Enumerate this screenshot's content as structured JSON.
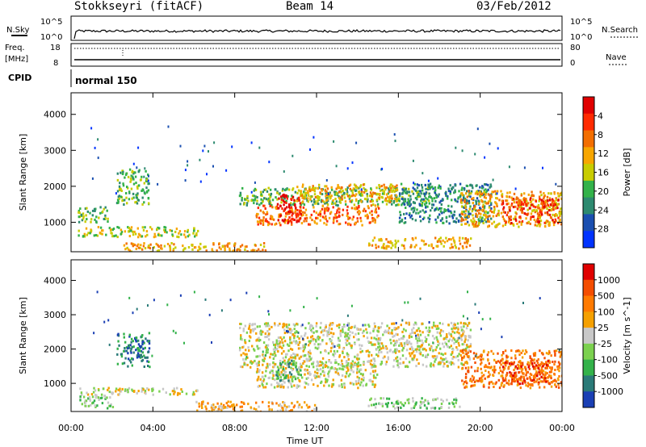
{
  "header": {
    "station": "Stokkseyri (fitACF)",
    "beam": "Beam 14",
    "date": "03/Feb/2012"
  },
  "panels": {
    "nsky": {
      "left_label": "N.Sky",
      "right_label": "N.Search",
      "ticks_left": [
        "10^5",
        "10^0"
      ],
      "ticks_right": [
        "10^5",
        "10^0"
      ]
    },
    "freq": {
      "left_label_1": "Freq.",
      "left_label_2": "[MHz]",
      "right_label": "Nave",
      "ticks_left": [
        "18",
        "8"
      ],
      "ticks_right": [
        "80",
        "0"
      ]
    },
    "cpid": {
      "label": "CPID",
      "value": "normal 150"
    }
  },
  "chart_data": [
    {
      "type": "heatmap",
      "title": "",
      "xlabel": "Time UT",
      "ylabel": "Slant Range [km]",
      "xlim": [
        0,
        24
      ],
      "ylim": [
        180,
        4600
      ],
      "x_ticks": [
        "00:00",
        "04:00",
        "08:00",
        "12:00",
        "16:00",
        "20:00",
        "00:00"
      ],
      "y_ticks": [
        "1000",
        "2000",
        "3000",
        "4000"
      ],
      "colorbar": {
        "label": "Power [dB]",
        "ticks": [
          "4",
          "8",
          "12",
          "16",
          "20",
          "24",
          "28"
        ],
        "colors": [
          "#0033ff",
          "#1a4fb0",
          "#2d8a70",
          "#33b24a",
          "#c8cc00",
          "#f7a600",
          "#f36e00",
          "#ff2a00",
          "#e00000"
        ]
      },
      "regions": [
        {
          "t0": 0.3,
          "t1": 6.2,
          "r0": 620,
          "r1": 900,
          "level": 4
        },
        {
          "t0": 0.3,
          "t1": 1.8,
          "r0": 1000,
          "r1": 1450,
          "level": 3
        },
        {
          "t0": 2.2,
          "t1": 3.8,
          "r0": 1500,
          "r1": 2500,
          "level": 3
        },
        {
          "t0": 2.5,
          "t1": 9.5,
          "r0": 200,
          "r1": 450,
          "level": 5
        },
        {
          "t0": 8.2,
          "t1": 17.5,
          "r0": 1500,
          "r1": 2000,
          "level": 3
        },
        {
          "t0": 9.0,
          "t1": 15.0,
          "r0": 950,
          "r1": 1500,
          "level": 6
        },
        {
          "t0": 10.0,
          "t1": 11.2,
          "r0": 1000,
          "r1": 1800,
          "level": 8
        },
        {
          "t0": 11.0,
          "t1": 16.0,
          "r0": 1600,
          "r1": 2100,
          "level": 5
        },
        {
          "t0": 14.5,
          "t1": 19.5,
          "r0": 300,
          "r1": 600,
          "level": 5
        },
        {
          "t0": 16.0,
          "t1": 20.5,
          "r0": 1000,
          "r1": 2100,
          "level": 2
        },
        {
          "t0": 19.0,
          "t1": 24.0,
          "r0": 900,
          "r1": 1900,
          "level": 5
        },
        {
          "t0": 21.0,
          "t1": 23.8,
          "r0": 1000,
          "r1": 1700,
          "level": 7
        }
      ]
    },
    {
      "type": "heatmap",
      "title": "",
      "xlabel": "Time UT",
      "ylabel": "Slant Range [km]",
      "xlim": [
        0,
        24
      ],
      "ylim": [
        180,
        4600
      ],
      "x_ticks": [
        "00:00",
        "04:00",
        "08:00",
        "12:00",
        "16:00",
        "20:00",
        "00:00"
      ],
      "y_ticks": [
        "1000",
        "2000",
        "3000",
        "4000"
      ],
      "colorbar": {
        "label": "Velocity [m s^-1]",
        "ticks": [
          "1000",
          "500",
          "100",
          "25",
          "-25",
          "-100",
          "-500",
          "-1000"
        ],
        "colors": [
          "#1a3fb4",
          "#2a7a78",
          "#33b24a",
          "#7bd14f",
          "#c8c8c8",
          "#f5a000",
          "#ff7a00",
          "#f44d00",
          "#e00000"
        ]
      },
      "regions": [
        {
          "t0": 0.3,
          "t1": 6.2,
          "r0": 700,
          "r1": 900,
          "level": 4
        },
        {
          "t0": 0.3,
          "t1": 2.0,
          "r0": 300,
          "r1": 700,
          "level": 3
        },
        {
          "t0": 2.2,
          "t1": 3.8,
          "r0": 1500,
          "r1": 2500,
          "level": 1
        },
        {
          "t0": 8.2,
          "t1": 19.5,
          "r0": 1500,
          "r1": 2800,
          "level": 4
        },
        {
          "t0": 9.0,
          "t1": 15.0,
          "r0": 900,
          "r1": 1600,
          "level": 4
        },
        {
          "t0": 10.0,
          "t1": 11.2,
          "r0": 1100,
          "r1": 1700,
          "level": 2
        },
        {
          "t0": 6.0,
          "t1": 12.0,
          "r0": 200,
          "r1": 500,
          "level": 5
        },
        {
          "t0": 14.5,
          "t1": 19.0,
          "r0": 300,
          "r1": 600,
          "level": 3
        },
        {
          "t0": 19.0,
          "t1": 24.0,
          "r0": 900,
          "r1": 2000,
          "level": 6
        },
        {
          "t0": 21.0,
          "t1": 23.5,
          "r0": 1000,
          "r1": 1700,
          "level": 7
        }
      ]
    }
  ]
}
